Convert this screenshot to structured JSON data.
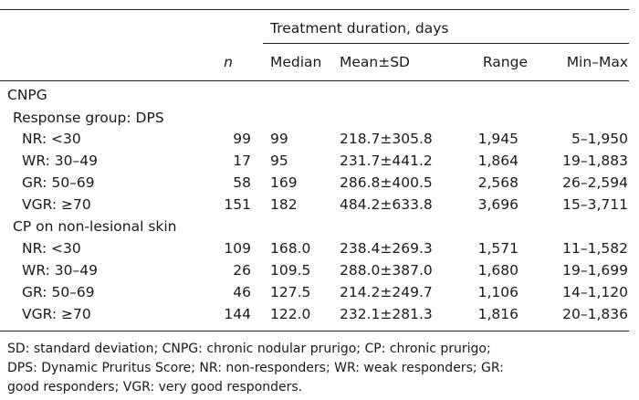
{
  "table": {
    "spanning_header": "Treatment duration, days",
    "headers": {
      "n": "n",
      "median": "Median",
      "mean_sd": "Mean±SD",
      "range": "Range",
      "min_max": "Min–Max"
    },
    "section_title": "CNPG",
    "groups": [
      {
        "label": "Response group: DPS",
        "rows": [
          {
            "label": "NR: <30",
            "n": "99",
            "median": "99",
            "mean_sd": "218.7±305.8",
            "range": "1,945",
            "min_max": "5–1,950"
          },
          {
            "label": "WR: 30–49",
            "n": "17",
            "median": "95",
            "mean_sd": "231.7±441.2",
            "range": "1,864",
            "min_max": "19–1,883"
          },
          {
            "label": "GR: 50–69",
            "n": "58",
            "median": "169",
            "mean_sd": "286.8±400.5",
            "range": "2,568",
            "min_max": "26–2,594"
          },
          {
            "label": "VGR: ≥70",
            "n": "151",
            "median": "182",
            "mean_sd": "484.2±633.8",
            "range": "3,696",
            "min_max": "15–3,711"
          }
        ]
      },
      {
        "label": "CP on non-lesional skin",
        "rows": [
          {
            "label": "NR: <30",
            "n": "109",
            "median": "168.0",
            "mean_sd": "238.4±269.3",
            "range": "1,571",
            "min_max": "11–1,582"
          },
          {
            "label": "WR: 30–49",
            "n": "26",
            "median": "109.5",
            "mean_sd": "288.0±387.0",
            "range": "1,680",
            "min_max": "19–1,699"
          },
          {
            "label": "GR: 50–69",
            "n": "46",
            "median": "127.5",
            "mean_sd": "214.2±249.7",
            "range": "1,106",
            "min_max": "14–1,120"
          },
          {
            "label": "VGR: ≥70",
            "n": "144",
            "median": "122.0",
            "mean_sd": "232.1±281.3",
            "range": "1,816",
            "min_max": "20–1,836"
          }
        ]
      }
    ]
  },
  "footnote": {
    "lines": [
      "SD: standard deviation; CNPG: chronic nodular prurigo; CP: chronic prurigo;",
      "DPS: Dynamic Pruritus Score; NR: non-responders; WR: weak responders; GR:",
      "good responders; VGR: very good responders."
    ]
  }
}
